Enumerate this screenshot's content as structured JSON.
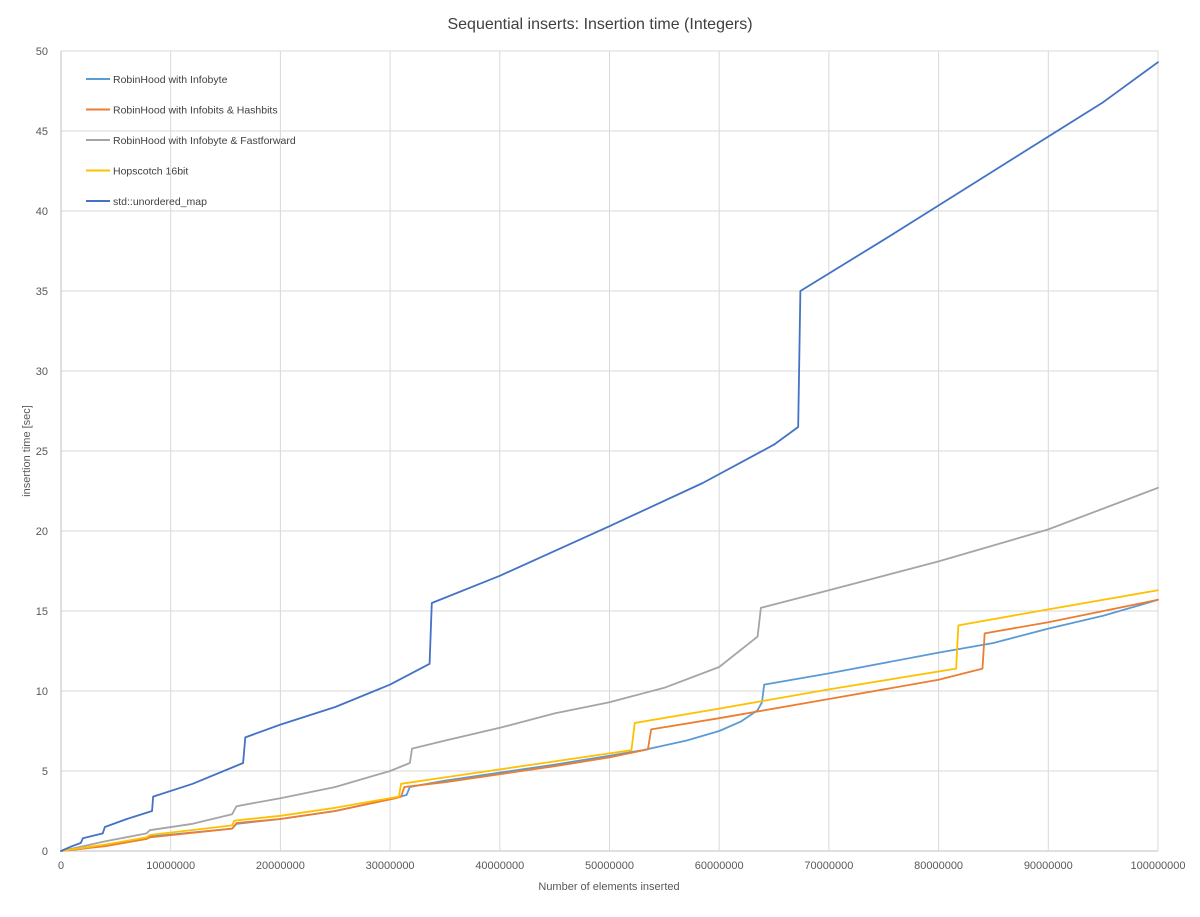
{
  "chart_data": {
    "type": "line",
    "title": "Sequential inserts: Insertion time (Integers)",
    "xlabel": "Number  of elements  inserted",
    "ylabel": "insertion time [sec]",
    "xlim": [
      0,
      100000000
    ],
    "ylim": [
      0,
      50
    ],
    "x_ticks": [
      0,
      10000000,
      20000000,
      30000000,
      40000000,
      50000000,
      60000000,
      70000000,
      80000000,
      90000000,
      100000000
    ],
    "y_ticks": [
      0,
      5,
      10,
      15,
      20,
      25,
      30,
      35,
      40,
      45,
      50
    ],
    "grid": true,
    "legend_position": "top-left",
    "series": [
      {
        "name": "RobinHood with Infobyte",
        "color": "#5b9bd5",
        "points": [
          [
            0,
            0
          ],
          [
            2000000,
            0.15
          ],
          [
            4000000,
            0.35
          ],
          [
            7800000,
            0.8
          ],
          [
            8100000,
            0.9
          ],
          [
            15600000,
            1.4
          ],
          [
            16000000,
            1.7
          ],
          [
            20000000,
            2.0
          ],
          [
            25000000,
            2.5
          ],
          [
            30000000,
            3.25
          ],
          [
            31500000,
            3.5
          ],
          [
            31800000,
            4.0
          ],
          [
            35000000,
            4.4
          ],
          [
            40000000,
            4.9
          ],
          [
            45000000,
            5.4
          ],
          [
            50000000,
            5.95
          ],
          [
            53000000,
            6.3
          ],
          [
            57000000,
            6.9
          ],
          [
            60000000,
            7.5
          ],
          [
            62000000,
            8.1
          ],
          [
            63500000,
            8.8
          ],
          [
            63900000,
            9.3
          ],
          [
            64100000,
            10.4
          ],
          [
            70000000,
            11.1
          ],
          [
            80000000,
            12.4
          ],
          [
            85000000,
            13.0
          ],
          [
            90000000,
            13.9
          ],
          [
            95000000,
            14.7
          ],
          [
            100000000,
            15.7
          ]
        ]
      },
      {
        "name": "RobinHood with Infobits & Hashbits",
        "color": "#ed7d31",
        "points": [
          [
            0,
            0
          ],
          [
            2000000,
            0.15
          ],
          [
            4000000,
            0.3
          ],
          [
            7800000,
            0.75
          ],
          [
            8100000,
            0.85
          ],
          [
            15600000,
            1.4
          ],
          [
            16000000,
            1.75
          ],
          [
            20000000,
            2.0
          ],
          [
            25000000,
            2.5
          ],
          [
            30500000,
            3.3
          ],
          [
            31000000,
            3.4
          ],
          [
            31300000,
            4.0
          ],
          [
            35000000,
            4.3
          ],
          [
            40000000,
            4.8
          ],
          [
            45000000,
            5.3
          ],
          [
            50000000,
            5.85
          ],
          [
            53500000,
            6.35
          ],
          [
            53800000,
            7.6
          ],
          [
            60000000,
            8.3
          ],
          [
            70000000,
            9.5
          ],
          [
            80000000,
            10.7
          ],
          [
            84000000,
            11.4
          ],
          [
            84200000,
            13.6
          ],
          [
            90000000,
            14.3
          ],
          [
            100000000,
            15.7
          ]
        ]
      },
      {
        "name": "RobinHood with Infobyte & Fastforward",
        "color": "#a5a5a5",
        "points": [
          [
            0,
            0
          ],
          [
            2000000,
            0.3
          ],
          [
            4000000,
            0.6
          ],
          [
            7800000,
            1.1
          ],
          [
            8100000,
            1.3
          ],
          [
            12000000,
            1.7
          ],
          [
            15600000,
            2.3
          ],
          [
            16000000,
            2.8
          ],
          [
            20000000,
            3.3
          ],
          [
            25000000,
            4.0
          ],
          [
            30000000,
            5.0
          ],
          [
            31800000,
            5.5
          ],
          [
            32000000,
            6.4
          ],
          [
            35000000,
            6.9
          ],
          [
            40000000,
            7.7
          ],
          [
            45000000,
            8.6
          ],
          [
            50000000,
            9.3
          ],
          [
            55000000,
            10.2
          ],
          [
            60000000,
            11.5
          ],
          [
            63500000,
            13.4
          ],
          [
            63800000,
            15.2
          ],
          [
            70000000,
            16.3
          ],
          [
            80000000,
            18.1
          ],
          [
            90000000,
            20.1
          ],
          [
            100000000,
            22.7
          ]
        ]
      },
      {
        "name": "Hopscotch 16bit",
        "color": "#ffc000",
        "points": [
          [
            0,
            0
          ],
          [
            2000000,
            0.2
          ],
          [
            4000000,
            0.4
          ],
          [
            7800000,
            0.85
          ],
          [
            8100000,
            1.0
          ],
          [
            15600000,
            1.6
          ],
          [
            15800000,
            1.9
          ],
          [
            20000000,
            2.2
          ],
          [
            25000000,
            2.7
          ],
          [
            30800000,
            3.4
          ],
          [
            31000000,
            4.2
          ],
          [
            35000000,
            4.6
          ],
          [
            40000000,
            5.1
          ],
          [
            45000000,
            5.6
          ],
          [
            50000000,
            6.1
          ],
          [
            52000000,
            6.3
          ],
          [
            52300000,
            8.0
          ],
          [
            60000000,
            8.9
          ],
          [
            70000000,
            10.1
          ],
          [
            81600000,
            11.4
          ],
          [
            81800000,
            14.1
          ],
          [
            90000000,
            15.1
          ],
          [
            100000000,
            16.3
          ]
        ]
      },
      {
        "name": "std::unordered_map",
        "color": "#4472c4",
        "points": [
          [
            0,
            0
          ],
          [
            1000000,
            0.3
          ],
          [
            1800000,
            0.5
          ],
          [
            2000000,
            0.8
          ],
          [
            3800000,
            1.1
          ],
          [
            4000000,
            1.5
          ],
          [
            6000000,
            2.0
          ],
          [
            8300000,
            2.5
          ],
          [
            8400000,
            3.4
          ],
          [
            12000000,
            4.2
          ],
          [
            16600000,
            5.5
          ],
          [
            16800000,
            7.1
          ],
          [
            20000000,
            7.9
          ],
          [
            25000000,
            9.0
          ],
          [
            30000000,
            10.4
          ],
          [
            33600000,
            11.7
          ],
          [
            33800000,
            15.5
          ],
          [
            40000000,
            17.2
          ],
          [
            50000000,
            20.3
          ],
          [
            58500000,
            23.0
          ],
          [
            65000000,
            25.4
          ],
          [
            67200000,
            26.5
          ],
          [
            67400000,
            35.0
          ],
          [
            75000000,
            38.2
          ],
          [
            85000000,
            42.5
          ],
          [
            95000000,
            46.8
          ],
          [
            100000000,
            49.3
          ]
        ]
      }
    ]
  }
}
